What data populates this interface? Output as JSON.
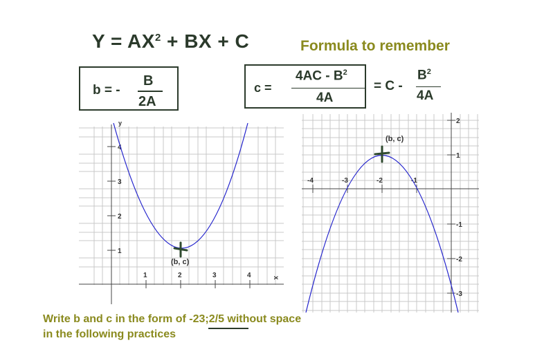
{
  "main_formula": {
    "lhs": "Y = AX",
    "exp": "2",
    "rhs": " + BX + C"
  },
  "note": "Formula to remember",
  "b_formula": {
    "lhs": "b = -",
    "numerator": "B",
    "denominator": "2A"
  },
  "c_formula": {
    "lhs": "c =",
    "numerator": "4AC - B",
    "numerator_exp": "2",
    "denominator": "4A",
    "middle": "= C -",
    "numerator2": "B",
    "numerator2_exp": "2",
    "denominator2": "4A"
  },
  "footer": {
    "line1_prefix": "Write b and c in the form of ",
    "example": "-23;2/5",
    "line1_suffix": " without space",
    "line2": "in the following practices"
  },
  "chart_data": [
    {
      "type": "line",
      "description_of_curve": "upward parabola",
      "x_ticks": [
        "1",
        "2",
        "3",
        "4"
      ],
      "y_ticks": [
        "1",
        "2",
        "3",
        "4"
      ],
      "x_axis_label": "x",
      "y_axis_label": "y",
      "xlim": [
        -1,
        5
      ],
      "ylim": [
        -0.5,
        4.5
      ],
      "series": [
        {
          "points": [
            [
              0.9,
              4.6
            ],
            [
              1,
              4
            ],
            [
              1.5,
              2.25
            ],
            [
              2,
              1
            ],
            [
              2.5,
              2.25
            ],
            [
              3,
              4
            ],
            [
              3.3,
              5.3
            ]
          ]
        }
      ],
      "vertex": {
        "x": 2,
        "y": 1,
        "label": "(b, c)"
      },
      "grid": true,
      "curve_color": "#2222cc"
    },
    {
      "type": "line",
      "description_of_curve": "downward parabola",
      "x_ticks": [
        "-4",
        "-3",
        "-2",
        "-1"
      ],
      "y_ticks": [
        "2",
        "1",
        "-1",
        "-2",
        "-3"
      ],
      "xlim": [
        -4.2,
        0.8
      ],
      "ylim": [
        -3.3,
        2.2
      ],
      "series": [
        {
          "points": [
            [
              -4.2,
              -3.84
            ],
            [
              -2,
              1
            ],
            [
              0.2,
              -3.84
            ]
          ]
        }
      ],
      "vertex": {
        "x": -2,
        "y": 1,
        "label": "(b, c)"
      },
      "grid": true,
      "curve_color": "#2222cc"
    }
  ]
}
